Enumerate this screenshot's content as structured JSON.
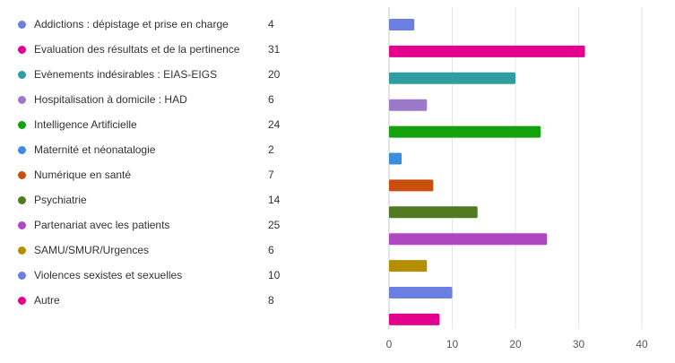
{
  "chart_data": {
    "type": "bar",
    "orientation": "horizontal",
    "categories": [
      "Addictions : dépistage et prise en charge",
      "Evaluation des résultats et de la pertinence",
      "Evènements indésirables : EIAS-EIGS",
      "Hospitalisation à domicile : HAD",
      "Intelligence Artificielle",
      "Maternité et néonatalogie",
      "Numérique en santé",
      "Psychiatrie",
      "Partenariat avec les patients",
      "SAMU/SMUR/Urgences",
      "Violences sexistes et sexuelles",
      "Autre"
    ],
    "values": [
      4,
      31,
      20,
      6,
      24,
      2,
      7,
      14,
      25,
      6,
      10,
      8
    ],
    "colors": [
      "#6b7fe3",
      "#e3008c",
      "#2e9ea1",
      "#9c78c8",
      "#13a10e",
      "#3a8fdc",
      "#c94f0f",
      "#4f7a21",
      "#b146c2",
      "#b58e00",
      "#6b7fe3",
      "#e3008c"
    ],
    "xlim": [
      0,
      40
    ],
    "xticks": [
      "0",
      "10",
      "20",
      "30",
      "40"
    ],
    "grid": true,
    "legend": "left",
    "title": "",
    "xlabel": "",
    "ylabel": ""
  }
}
